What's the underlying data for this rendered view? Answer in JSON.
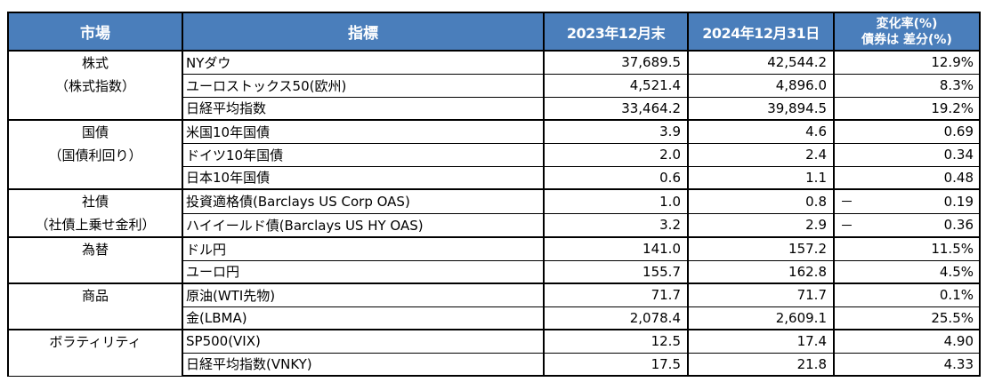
{
  "table": {
    "headers": {
      "market": "市場",
      "indicator": "指標",
      "v2023": "2023年12月末",
      "v2024": "2024年12月31日",
      "change_line1": "変化率(%)",
      "change_line2": "債券は 差分(%)"
    },
    "header_bg_color": "#4a7ebb",
    "header_text_color": "#ffffff",
    "groups": [
      {
        "market_line1": "株式",
        "market_line2": "（株式指数）",
        "rows": [
          {
            "indicator": "NYダウ",
            "v2023": "37,689.5",
            "v2024": "42,544.2",
            "minus": "",
            "change": "12.9%"
          },
          {
            "indicator": "ユーロストックス50(欧州)",
            "v2023": "4,521.4",
            "v2024": "4,896.0",
            "minus": "",
            "change": "8.3%"
          },
          {
            "indicator": "日経平均指数",
            "v2023": "33,464.2",
            "v2024": "39,894.5",
            "minus": "",
            "change": "19.2%"
          }
        ]
      },
      {
        "market_line1": "国債",
        "market_line2": "（国債利回り）",
        "rows": [
          {
            "indicator": "米国10年国債",
            "v2023": "3.9",
            "v2024": "4.6",
            "minus": "",
            "change": "0.69"
          },
          {
            "indicator": "ドイツ10年国債",
            "v2023": "2.0",
            "v2024": "2.4",
            "minus": "",
            "change": "0.34"
          },
          {
            "indicator": "日本10年国債",
            "v2023": "0.6",
            "v2024": "1.1",
            "minus": "",
            "change": "0.48"
          }
        ]
      },
      {
        "market_line1": "社債",
        "market_line2": "（社債上乗せ金利）",
        "rows": [
          {
            "indicator": "投資適格債(Barclays US Corp OAS)",
            "v2023": "1.0",
            "v2024": "0.8",
            "minus": "－",
            "change": "0.19"
          },
          {
            "indicator": "ハイイールド債(Barclays US HY OAS)",
            "v2023": "3.2",
            "v2024": "2.9",
            "minus": "－",
            "change": "0.36"
          }
        ]
      },
      {
        "market_line1": "為替",
        "market_line2": "",
        "rows": [
          {
            "indicator": "ドル円",
            "v2023": "141.0",
            "v2024": "157.2",
            "minus": "",
            "change": "11.5%"
          },
          {
            "indicator": "ユーロ円",
            "v2023": "155.7",
            "v2024": "162.8",
            "minus": "",
            "change": "4.5%"
          }
        ]
      },
      {
        "market_line1": "商品",
        "market_line2": "",
        "rows": [
          {
            "indicator": "原油(WTI先物)",
            "v2023": "71.7",
            "v2024": "71.7",
            "minus": "",
            "change": "0.1%"
          },
          {
            "indicator": "金(LBMA)",
            "v2023": "2,078.4",
            "v2024": "2,609.1",
            "minus": "",
            "change": "25.5%"
          }
        ]
      },
      {
        "market_line1": "ボラティリティ",
        "market_line2": "",
        "rows": [
          {
            "indicator": "SP500(VIX)",
            "v2023": "12.5",
            "v2024": "17.4",
            "minus": "",
            "change": "4.90"
          },
          {
            "indicator": "日経平均指数(VNKY)",
            "v2023": "17.5",
            "v2024": "21.8",
            "minus": "",
            "change": "4.33"
          }
        ]
      }
    ]
  }
}
